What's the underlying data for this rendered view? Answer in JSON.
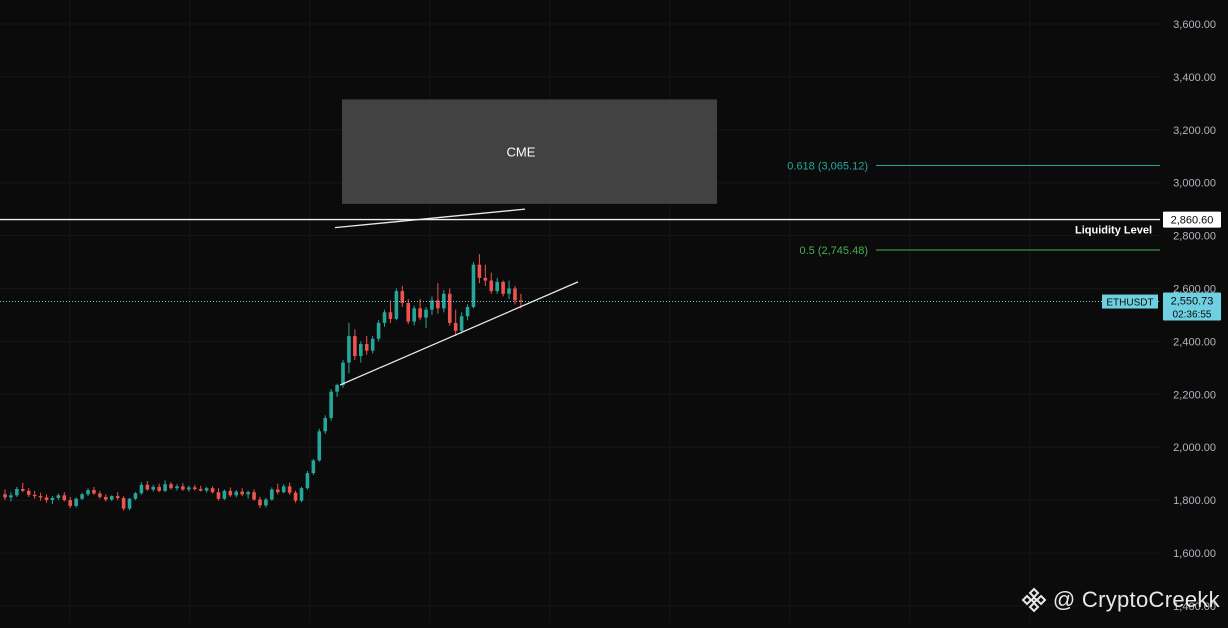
{
  "chart_data": {
    "type": "candlestick",
    "symbol": "ETHUSDT",
    "price_axis": {
      "ticks": [
        "3,600.00",
        "3,400.00",
        "3,200.00",
        "3,000.00",
        "2,800.00",
        "2,600.00",
        "2,400.00",
        "2,200.00",
        "2,000.00",
        "1,800.00",
        "1,600.00",
        "1,400.00"
      ],
      "tick_values": [
        3600,
        3400,
        3200,
        3000,
        2800,
        2600,
        2400,
        2200,
        2000,
        1800,
        1600,
        1400
      ],
      "range": [
        1370,
        3680
      ]
    },
    "current_price": {
      "label": "2,550.73",
      "value": 2550.73,
      "countdown": "02:36:55"
    },
    "liquidity_level": {
      "label": "Liquidity Level",
      "value": 2860.6,
      "value_label": "2,860.60"
    },
    "fib_levels": [
      {
        "label": "0.618 (3,065.12)",
        "value": 3065.12,
        "color": "#26a69a"
      },
      {
        "label": "0.5 (2,745.48)",
        "value": 2745.48,
        "color": "#4caf50"
      }
    ],
    "zone": {
      "label": "CME",
      "top": 3315,
      "bottom": 2920
    },
    "channel": {
      "upper": [
        [
          335,
          2830
        ],
        [
          525,
          2900
        ]
      ],
      "lower": [
        [
          340,
          2235
        ],
        [
          578,
          2625
        ]
      ]
    },
    "candles": [
      [
        1822,
        1840,
        1800,
        1810
      ],
      [
        1810,
        1830,
        1795,
        1818
      ],
      [
        1818,
        1850,
        1812,
        1842
      ],
      [
        1842,
        1865,
        1830,
        1835
      ],
      [
        1835,
        1845,
        1812,
        1820
      ],
      [
        1820,
        1835,
        1805,
        1815
      ],
      [
        1815,
        1828,
        1798,
        1810
      ],
      [
        1810,
        1822,
        1790,
        1800
      ],
      [
        1800,
        1815,
        1785,
        1808
      ],
      [
        1808,
        1825,
        1800,
        1818
      ],
      [
        1818,
        1830,
        1795,
        1800
      ],
      [
        1800,
        1812,
        1770,
        1778
      ],
      [
        1778,
        1810,
        1772,
        1805
      ],
      [
        1805,
        1828,
        1800,
        1822
      ],
      [
        1822,
        1845,
        1815,
        1838
      ],
      [
        1838,
        1850,
        1820,
        1825
      ],
      [
        1825,
        1835,
        1805,
        1812
      ],
      [
        1812,
        1822,
        1795,
        1802
      ],
      [
        1802,
        1818,
        1796,
        1815
      ],
      [
        1815,
        1830,
        1800,
        1808
      ],
      [
        1808,
        1815,
        1760,
        1768
      ],
      [
        1768,
        1808,
        1762,
        1805
      ],
      [
        1805,
        1830,
        1800,
        1826
      ],
      [
        1826,
        1868,
        1820,
        1858
      ],
      [
        1858,
        1872,
        1835,
        1840
      ],
      [
        1840,
        1858,
        1832,
        1850
      ],
      [
        1850,
        1862,
        1830,
        1835
      ],
      [
        1835,
        1875,
        1830,
        1860
      ],
      [
        1860,
        1868,
        1840,
        1845
      ],
      [
        1845,
        1860,
        1836,
        1852
      ],
      [
        1852,
        1864,
        1835,
        1840
      ],
      [
        1840,
        1855,
        1832,
        1848
      ],
      [
        1848,
        1858,
        1836,
        1842
      ],
      [
        1842,
        1854,
        1832,
        1836
      ],
      [
        1836,
        1850,
        1828,
        1845
      ],
      [
        1845,
        1852,
        1825,
        1830
      ],
      [
        1830,
        1845,
        1798,
        1805
      ],
      [
        1805,
        1840,
        1800,
        1835
      ],
      [
        1835,
        1848,
        1812,
        1818
      ],
      [
        1818,
        1838,
        1810,
        1832
      ],
      [
        1832,
        1845,
        1815,
        1822
      ],
      [
        1822,
        1836,
        1805,
        1830
      ],
      [
        1830,
        1840,
        1798,
        1802
      ],
      [
        1802,
        1812,
        1770,
        1780
      ],
      [
        1780,
        1808,
        1772,
        1802
      ],
      [
        1802,
        1848,
        1798,
        1840
      ],
      [
        1840,
        1862,
        1822,
        1830
      ],
      [
        1830,
        1860,
        1826,
        1852
      ],
      [
        1852,
        1866,
        1820,
        1828
      ],
      [
        1828,
        1835,
        1790,
        1798
      ],
      [
        1798,
        1850,
        1792,
        1845
      ],
      [
        1845,
        1910,
        1840,
        1902
      ],
      [
        1902,
        1955,
        1895,
        1950
      ],
      [
        1950,
        2070,
        1945,
        2060
      ],
      [
        2060,
        2120,
        2050,
        2110
      ],
      [
        2110,
        2220,
        2100,
        2210
      ],
      [
        2210,
        2240,
        2190,
        2235
      ],
      [
        2235,
        2330,
        2225,
        2320
      ],
      [
        2320,
        2470,
        2280,
        2420
      ],
      [
        2420,
        2445,
        2330,
        2345
      ],
      [
        2345,
        2400,
        2320,
        2390
      ],
      [
        2390,
        2420,
        2350,
        2365
      ],
      [
        2365,
        2420,
        2355,
        2410
      ],
      [
        2410,
        2480,
        2400,
        2470
      ],
      [
        2470,
        2520,
        2455,
        2510
      ],
      [
        2510,
        2555,
        2470,
        2485
      ],
      [
        2485,
        2600,
        2480,
        2590
      ],
      [
        2590,
        2610,
        2530,
        2545
      ],
      [
        2545,
        2560,
        2465,
        2475
      ],
      [
        2475,
        2535,
        2460,
        2525
      ],
      [
        2525,
        2560,
        2480,
        2490
      ],
      [
        2490,
        2530,
        2450,
        2520
      ],
      [
        2520,
        2570,
        2500,
        2555
      ],
      [
        2555,
        2620,
        2505,
        2525
      ],
      [
        2525,
        2595,
        2510,
        2580
      ],
      [
        2580,
        2600,
        2460,
        2470
      ],
      [
        2470,
        2520,
        2420,
        2440
      ],
      [
        2440,
        2510,
        2430,
        2495
      ],
      [
        2495,
        2540,
        2480,
        2530
      ],
      [
        2530,
        2700,
        2525,
        2690
      ],
      [
        2690,
        2730,
        2620,
        2640
      ],
      [
        2640,
        2690,
        2610,
        2630
      ],
      [
        2630,
        2660,
        2580,
        2590
      ],
      [
        2590,
        2640,
        2580,
        2625
      ],
      [
        2625,
        2630,
        2570,
        2580
      ],
      [
        2580,
        2630,
        2560,
        2600
      ],
      [
        2600,
        2610,
        2540,
        2555
      ],
      [
        2555,
        2580,
        2525,
        2550
      ]
    ]
  },
  "watermark": {
    "text": "@ CryptoCreekk"
  },
  "colors": {
    "up": "#26a69a",
    "down": "#ef5350",
    "bg": "#0b0b0b",
    "axis_text": "#b2b5be",
    "tag": "#6ed0e0"
  }
}
